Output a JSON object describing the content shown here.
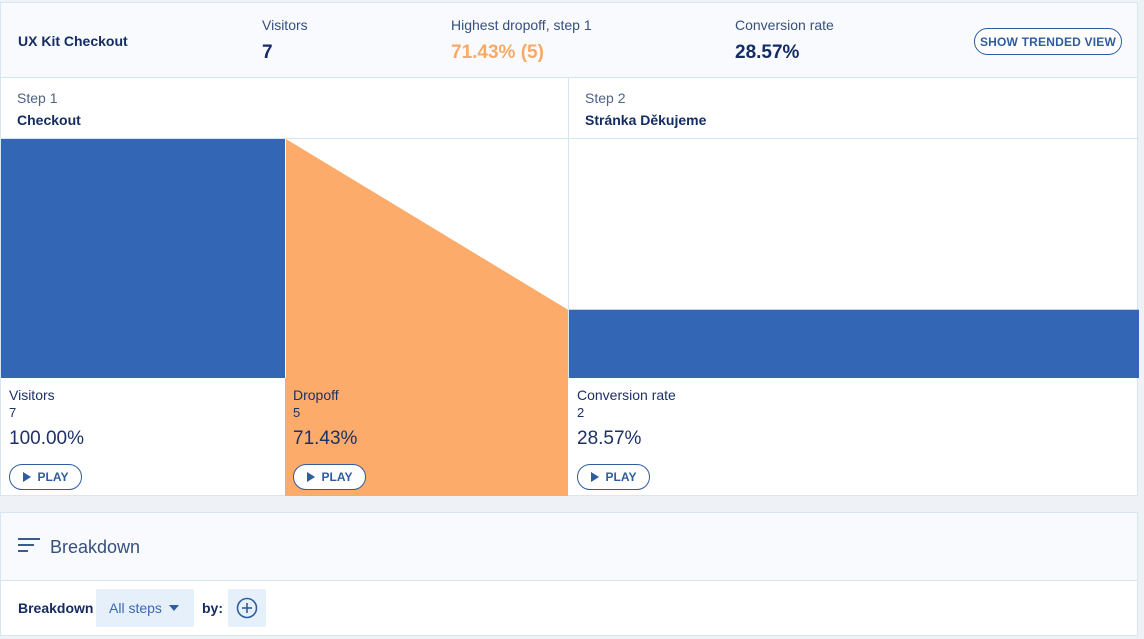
{
  "header": {
    "funnel_name": "UX Kit Checkout",
    "visitors_label": "Visitors",
    "visitors_value": "7",
    "dropoff_label": "Highest dropoff, step 1",
    "dropoff_value": "71.43% (5)",
    "conversion_label": "Conversion rate",
    "conversion_value": "28.57%",
    "trend_button": "SHOW TRENDED VIEW"
  },
  "steps": [
    {
      "number": "Step 1",
      "name": "Checkout"
    },
    {
      "number": "Step 2",
      "name": "Stránka Děkujeme"
    }
  ],
  "stats": {
    "visitors": {
      "label": "Visitors",
      "count": "7",
      "percent": "100.00%",
      "play": "PLAY"
    },
    "dropoff": {
      "label": "Dropoff",
      "count": "5",
      "percent": "71.43%",
      "play": "PLAY"
    },
    "conversion": {
      "label": "Conversion rate",
      "count": "2",
      "percent": "28.57%",
      "play": "PLAY"
    }
  },
  "chart_data": {
    "type": "bar",
    "categories": [
      "Checkout",
      "Stránka Děkujeme"
    ],
    "values": [
      7,
      2
    ],
    "dropoff": {
      "from": 7,
      "to": 2
    }
  },
  "colors": {
    "bar": "#3366b4",
    "dropoff": "#fdab6b",
    "accent": "#2e5c9e"
  },
  "breakdown": {
    "title": "Breakdown",
    "label": "Breakdown",
    "selected_step": "All steps",
    "by_label": "by:",
    "icon": "add-circle-icon",
    "menu_icon": "filter-lines-icon"
  }
}
